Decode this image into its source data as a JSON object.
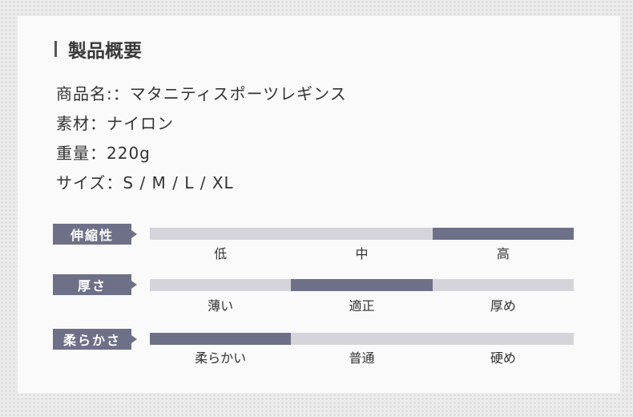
{
  "title": "製品概要",
  "specs": [
    "商品名:：マタニティスポーツレギンス",
    "素材：ナイロン",
    "重量：220g",
    "サイズ：S / M / L / XL"
  ],
  "ratings": [
    {
      "label": "伸縮性",
      "options": [
        "低",
        "中",
        "高"
      ],
      "selected": 2
    },
    {
      "label": "厚さ",
      "options": [
        "薄い",
        "適正",
        "厚め"
      ],
      "selected": 1
    },
    {
      "label": "柔らかさ",
      "options": [
        "柔らかい",
        "普通",
        "硬め"
      ],
      "selected": 0
    }
  ],
  "colors": {
    "accent": "#6e7088",
    "track": "#d4d4da"
  }
}
